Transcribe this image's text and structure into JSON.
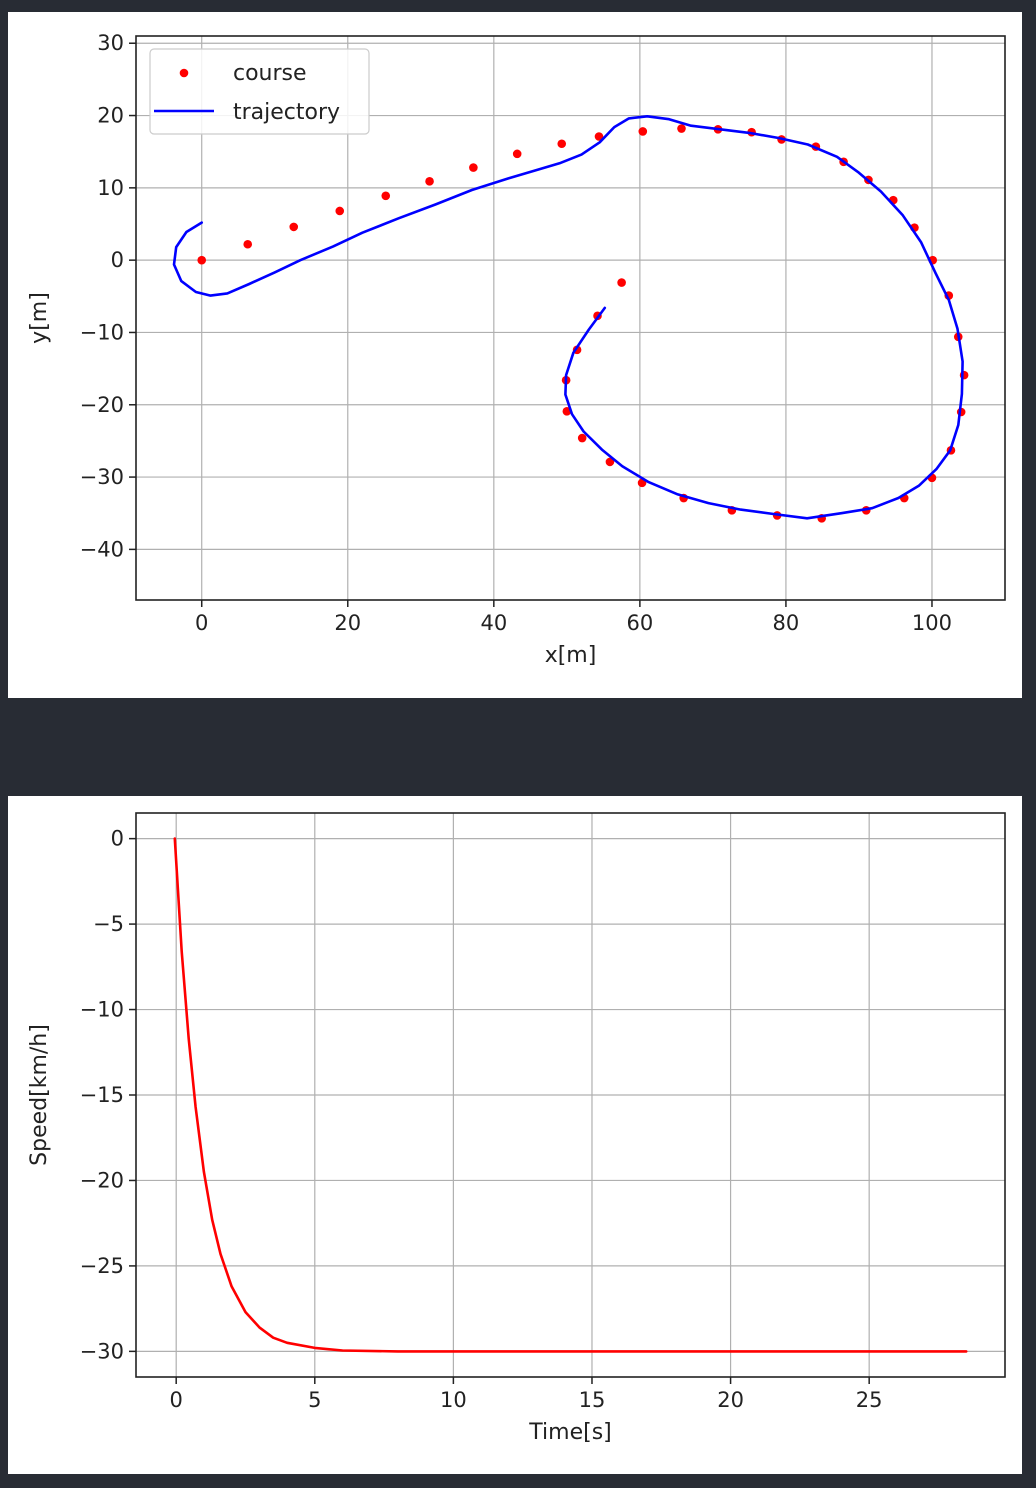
{
  "colors": {
    "background": "#282c34",
    "panel": "#ffffff",
    "course": "#ff0000",
    "trajectory": "#0000ff",
    "speed": "#ff0000",
    "grid": "#b0b0b0"
  },
  "chart_data": [
    {
      "type": "line",
      "xlabel": "x[m]",
      "ylabel": "y[m]",
      "xlim": [
        -9,
        110
      ],
      "ylim": [
        -47,
        31
      ],
      "xticks": [
        0,
        20,
        40,
        60,
        80,
        100
      ],
      "yticks": [
        30,
        20,
        10,
        0,
        -10,
        -20,
        -30,
        -40
      ],
      "xtick_labels": [
        "0",
        "20",
        "40",
        "60",
        "80",
        "100"
      ],
      "ytick_labels": [
        "30",
        "20",
        "10",
        "0",
        "−10",
        "−20",
        "−30",
        "−40"
      ],
      "grid": true,
      "legend": {
        "placement": "top-left",
        "entries": [
          "course",
          "trajectory"
        ]
      },
      "series": [
        {
          "name": "course",
          "style": "points",
          "color": "#ff0000",
          "points": [
            [
              0,
              0
            ],
            [
              6.3,
              2.2
            ],
            [
              12.6,
              4.6
            ],
            [
              18.9,
              6.8
            ],
            [
              25.2,
              8.9
            ],
            [
              31.2,
              10.9
            ],
            [
              37.2,
              12.8
            ],
            [
              43.2,
              14.7
            ],
            [
              49.3,
              16.1
            ],
            [
              54.4,
              17.1
            ],
            [
              60.4,
              17.8
            ],
            [
              65.7,
              18.2
            ],
            [
              70.7,
              18.1
            ],
            [
              75.3,
              17.7
            ],
            [
              79.4,
              16.7
            ],
            [
              84.1,
              15.7
            ],
            [
              87.9,
              13.6
            ],
            [
              91.3,
              11.1
            ],
            [
              94.7,
              8.3
            ],
            [
              97.6,
              4.5
            ],
            [
              100.1,
              0.0
            ],
            [
              102.3,
              -4.9
            ],
            [
              103.6,
              -10.6
            ],
            [
              104.4,
              -15.9
            ],
            [
              104.0,
              -21.0
            ],
            [
              102.6,
              -26.3
            ],
            [
              100.0,
              -30.1
            ],
            [
              96.2,
              -32.9
            ],
            [
              91.0,
              -34.6
            ],
            [
              84.9,
              -35.7
            ],
            [
              78.8,
              -35.3
            ],
            [
              72.6,
              -34.6
            ],
            [
              66.0,
              -32.9
            ],
            [
              60.3,
              -30.8
            ],
            [
              55.9,
              -27.9
            ],
            [
              52.1,
              -24.6
            ],
            [
              50.0,
              -20.9
            ],
            [
              49.9,
              -16.6
            ],
            [
              51.4,
              -12.4
            ],
            [
              54.2,
              -7.7
            ],
            [
              57.5,
              -3.1
            ]
          ]
        },
        {
          "name": "trajectory",
          "style": "line",
          "color": "#0000ff",
          "points": [
            [
              0,
              5.2
            ],
            [
              -2.1,
              3.9
            ],
            [
              -3.5,
              1.8
            ],
            [
              -3.8,
              -0.6
            ],
            [
              -2.8,
              -2.9
            ],
            [
              -0.8,
              -4.4
            ],
            [
              1.2,
              -4.9
            ],
            [
              3.5,
              -4.6
            ],
            [
              6.5,
              -3.3
            ],
            [
              10,
              -1.7
            ],
            [
              13.5,
              0
            ],
            [
              18,
              1.9
            ],
            [
              22,
              3.8
            ],
            [
              27,
              5.8
            ],
            [
              32,
              7.7
            ],
            [
              37,
              9.7
            ],
            [
              42,
              11.3
            ],
            [
              46,
              12.5
            ],
            [
              49,
              13.4
            ],
            [
              52,
              14.6
            ],
            [
              54.5,
              16.3
            ],
            [
              56.5,
              18.4
            ],
            [
              58.5,
              19.6
            ],
            [
              61,
              19.9
            ],
            [
              64,
              19.5
            ],
            [
              67,
              18.6
            ],
            [
              71,
              18.1
            ],
            [
              75,
              17.6
            ],
            [
              79,
              16.9
            ],
            [
              83,
              16.0
            ],
            [
              87,
              14.3
            ],
            [
              90,
              12.1
            ],
            [
              93,
              9.5
            ],
            [
              96,
              6.2
            ],
            [
              98.5,
              2.5
            ],
            [
              100.5,
              -1.8
            ],
            [
              102.3,
              -5.5
            ],
            [
              103.5,
              -9.5
            ],
            [
              104.2,
              -14.0
            ],
            [
              104.1,
              -18.5
            ],
            [
              103.6,
              -22.8
            ],
            [
              102.5,
              -26.3
            ],
            [
              100.6,
              -28.9
            ],
            [
              98.2,
              -31.2
            ],
            [
              95.4,
              -32.9
            ],
            [
              91.8,
              -34.3
            ],
            [
              87.6,
              -35.0
            ],
            [
              82.9,
              -35.7
            ],
            [
              78.3,
              -35.1
            ],
            [
              73.8,
              -34.5
            ],
            [
              69.4,
              -33.6
            ],
            [
              65.2,
              -32.4
            ],
            [
              61.2,
              -30.7
            ],
            [
              57.6,
              -28.5
            ],
            [
              54.8,
              -26.2
            ],
            [
              52.3,
              -23.7
            ],
            [
              50.7,
              -21.3
            ],
            [
              49.8,
              -18.6
            ],
            [
              49.9,
              -15.9
            ],
            [
              50.9,
              -12.8
            ],
            [
              53.0,
              -9.6
            ],
            [
              55.2,
              -6.6
            ]
          ]
        }
      ]
    },
    {
      "type": "line",
      "xlabel": "Time[s]",
      "ylabel": "Speed[km/h]",
      "xlim": [
        -1.45,
        29.9
      ],
      "ylim": [
        -31.5,
        1.5
      ],
      "xticks": [
        0,
        5,
        10,
        15,
        20,
        25
      ],
      "yticks": [
        0,
        -5,
        -10,
        -15,
        -20,
        -25,
        -30
      ],
      "xtick_labels": [
        "0",
        "5",
        "10",
        "15",
        "20",
        "25"
      ],
      "ytick_labels": [
        "0",
        "−5",
        "−10",
        "−15",
        "−20",
        "−25",
        "−30"
      ],
      "grid": true,
      "series": [
        {
          "style": "line",
          "color": "#ff0000",
          "points": [
            [
              -0.05,
              0
            ],
            [
              0.2,
              -6.6
            ],
            [
              0.45,
              -11.7
            ],
            [
              0.7,
              -15.7
            ],
            [
              1.0,
              -19.5
            ],
            [
              1.3,
              -22.3
            ],
            [
              1.6,
              -24.3
            ],
            [
              2.0,
              -26.2
            ],
            [
              2.5,
              -27.7
            ],
            [
              3.0,
              -28.6
            ],
            [
              3.5,
              -29.2
            ],
            [
              4.0,
              -29.5
            ],
            [
              5.0,
              -29.8
            ],
            [
              6.0,
              -29.95
            ],
            [
              8.0,
              -30.0
            ],
            [
              28.5,
              -30.0
            ]
          ]
        }
      ]
    }
  ]
}
